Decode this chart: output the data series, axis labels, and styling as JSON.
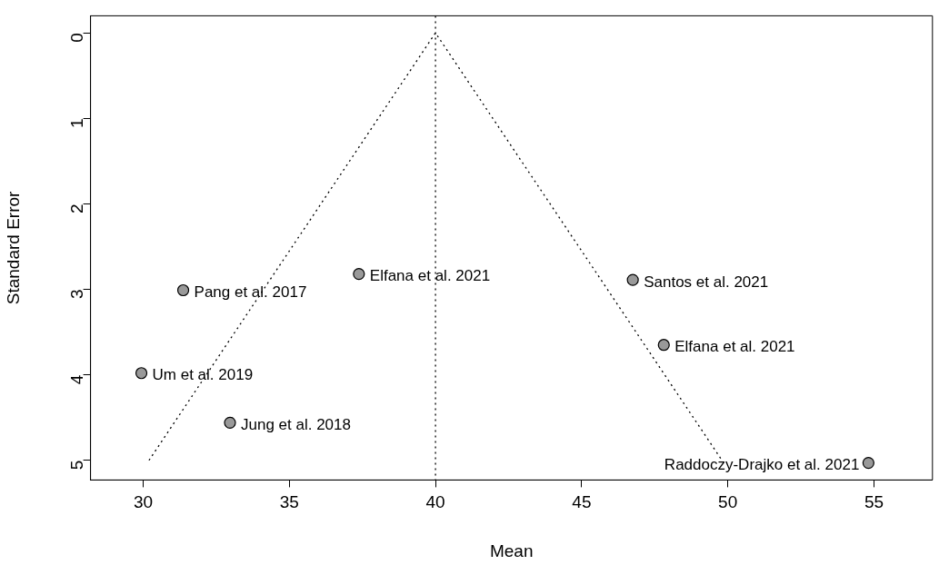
{
  "chart_data": {
    "type": "scatter",
    "xlabel": "Mean",
    "ylabel": "Standard Error",
    "xlim": [
      28.2,
      57
    ],
    "ylim": [
      5.23,
      -0.2
    ],
    "xticks": [
      30,
      35,
      40,
      45,
      50,
      55
    ],
    "yticks": [
      0,
      1,
      2,
      3,
      4,
      5
    ],
    "grid": false,
    "legend": false,
    "marker": "circle",
    "series": [
      {
        "type": "line",
        "color": "#000000",
        "line_style": "dotted",
        "marker": "none",
        "x": [
          30.2,
          40,
          49.8
        ],
        "values": [
          5,
          0,
          5
        ]
      },
      {
        "color": "#999999",
        "x": [
          31.37,
          29.94,
          32.97,
          37.38,
          46.75,
          47.81,
          54.81
        ],
        "values": [
          3.01,
          3.98,
          4.56,
          2.82,
          2.89,
          3.65,
          5.03
        ]
      }
    ],
    "ref_lines": [
      {
        "axis": "x",
        "value": 40,
        "line_style": "dotted",
        "color": "#000000"
      }
    ],
    "annotations": [
      {
        "text": "Pang et al. 2017",
        "x": 31.37,
        "y": 3.01
      },
      {
        "text": "Um et al. 2019",
        "x": 29.94,
        "y": 3.98
      },
      {
        "text": "Jung et al. 2018",
        "x": 32.97,
        "y": 4.56
      },
      {
        "text": "Elfana et al. 2021",
        "x": 37.38,
        "y": 2.82
      },
      {
        "text": "Santos et al. 2021",
        "x": 46.75,
        "y": 2.89
      },
      {
        "text": "Elfana et al. 2021",
        "x": 47.81,
        "y": 3.65
      },
      {
        "text": "Raddoczy-Drajko et al. 2021",
        "x": 54.81,
        "y": 5.03
      }
    ]
  }
}
